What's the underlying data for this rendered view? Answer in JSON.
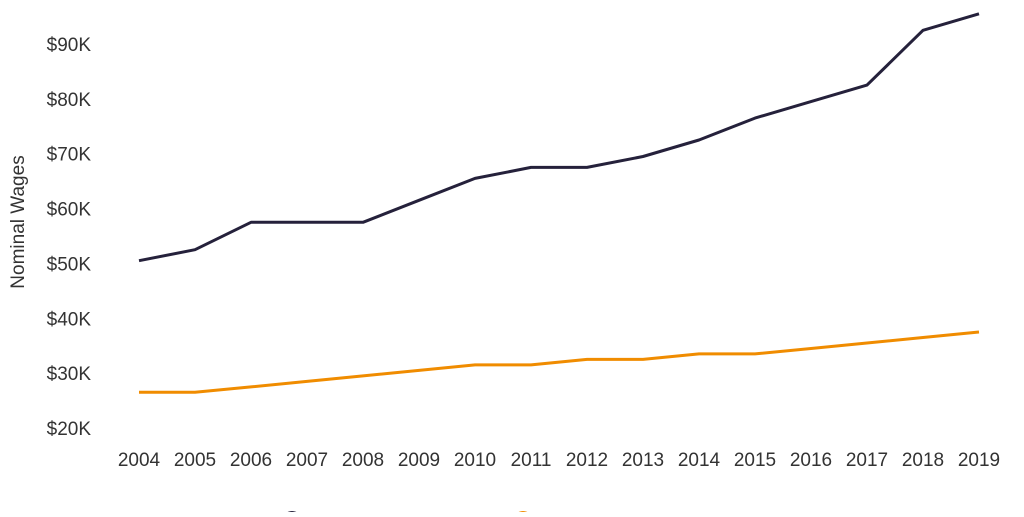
{
  "chart_data": {
    "type": "line",
    "title": "",
    "xlabel": "",
    "ylabel": "Nominal Wages",
    "ylim": [
      20000,
      95000
    ],
    "grid": false,
    "legend_placement": "bottom",
    "y_ticks": [
      20000,
      30000,
      40000,
      50000,
      60000,
      70000,
      80000,
      90000
    ],
    "y_tick_labels": [
      "$20K",
      "$30K",
      "$40K",
      "$50K",
      "$60K",
      "$70K",
      "$80K",
      "$90K"
    ],
    "x": [
      2004,
      2005,
      2006,
      2007,
      2008,
      2009,
      2010,
      2011,
      2012,
      2013,
      2014,
      2015,
      2016,
      2017,
      2018,
      2019
    ],
    "series": [
      {
        "color": "#25213b",
        "values": [
          50500,
          52500,
          57500,
          57500,
          57500,
          61500,
          65500,
          67500,
          67500,
          69500,
          72500,
          76500,
          79500,
          82500,
          92500,
          95500
        ]
      },
      {
        "color": "#f08c00",
        "values": [
          26500,
          26500,
          27500,
          28500,
          29500,
          30500,
          31500,
          31500,
          32500,
          32500,
          33500,
          33500,
          34500,
          35500,
          36500,
          37500
        ]
      }
    ]
  }
}
